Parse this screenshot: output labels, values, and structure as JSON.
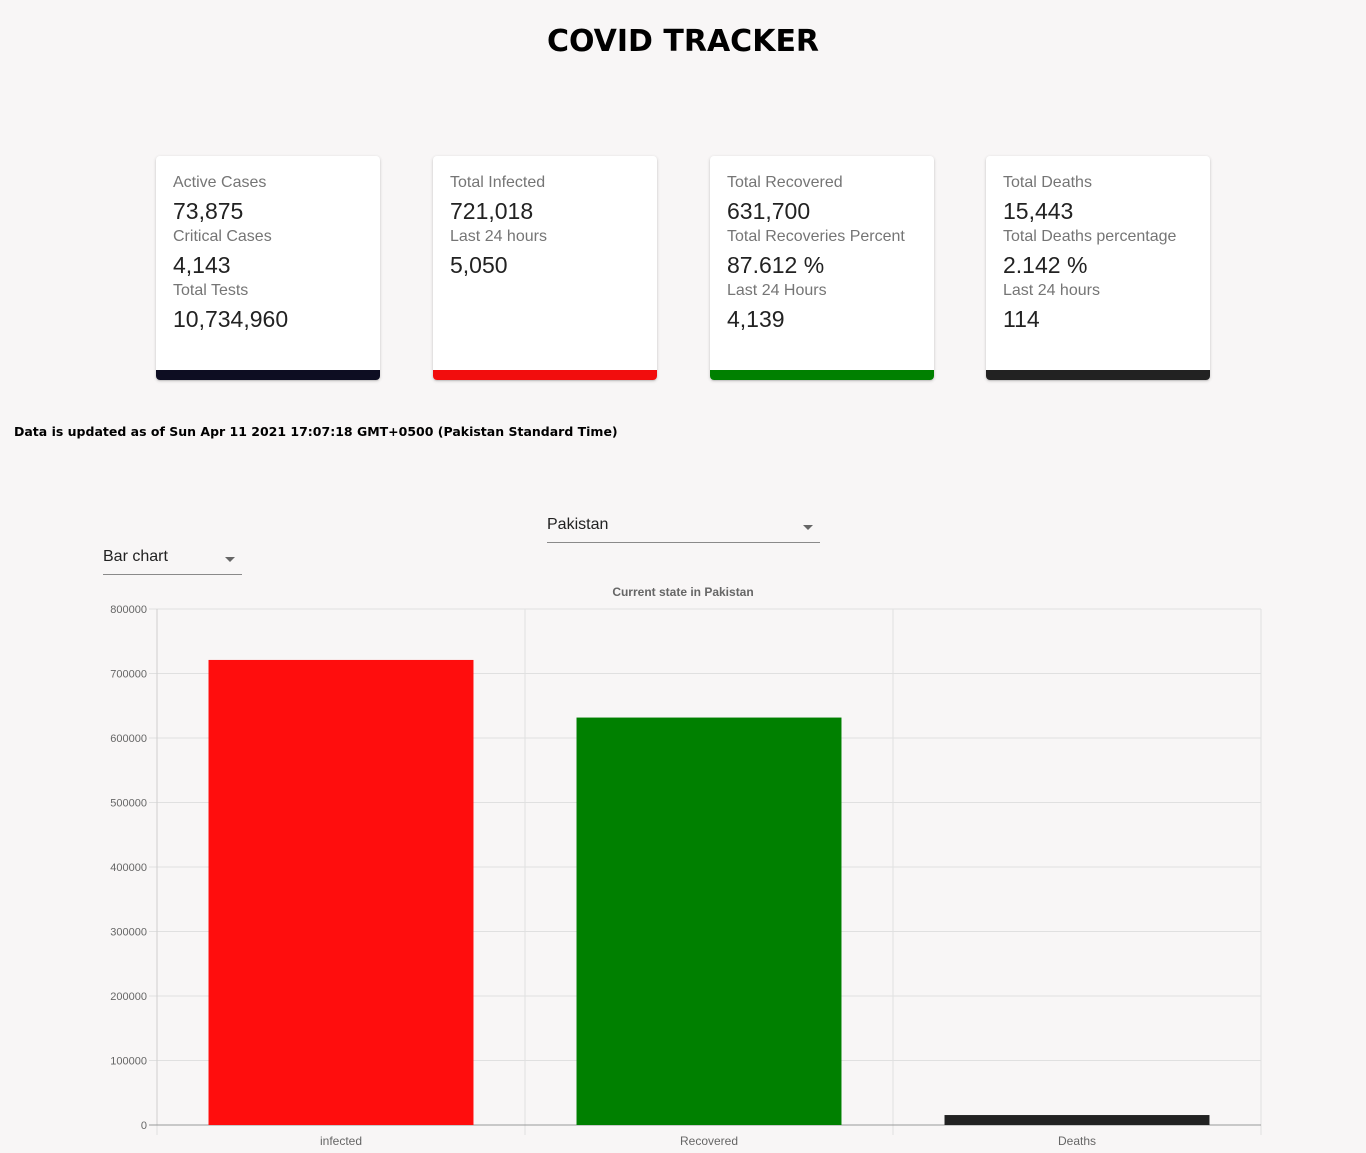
{
  "header": {
    "title": "COVID TRACKER"
  },
  "cards": [
    {
      "accent": "#0d0d22",
      "rows": [
        {
          "label": "Active Cases",
          "value": "73,875"
        },
        {
          "label": "Critical Cases",
          "value": "4,143"
        },
        {
          "label": "Total Tests",
          "value": "10,734,960"
        }
      ]
    },
    {
      "accent": "#f20d0d",
      "rows": [
        {
          "label": "Total Infected",
          "value": "721,018"
        },
        {
          "label": "Last 24 hours",
          "value": "5,050"
        }
      ]
    },
    {
      "accent": "#008000",
      "rows": [
        {
          "label": "Total Recovered",
          "value": "631,700"
        },
        {
          "label": "Total Recoveries Percent",
          "value": "87.612 %"
        },
        {
          "label": "Last 24 Hours",
          "value": "4,139"
        }
      ]
    },
    {
      "accent": "#222222",
      "rows": [
        {
          "label": "Total Deaths",
          "value": "15,443"
        },
        {
          "label": "Total Deaths percentage",
          "value": "2.142 %"
        },
        {
          "label": "Last 24 hours",
          "value": "114"
        }
      ]
    }
  ],
  "updated_text": "Data is updated as of Sun Apr 11 2021 17:07:18 GMT+0500 (Pakistan Standard Time)",
  "controls": {
    "country_select": {
      "value": "Pakistan"
    },
    "chart_type_select": {
      "value": "Bar chart"
    }
  },
  "chart_data": {
    "type": "bar",
    "title": "Current state in Pakistan",
    "categories": [
      "infected",
      "Recovered",
      "Deaths"
    ],
    "values": [
      721018,
      631700,
      15443
    ],
    "colors": [
      "#ff0d0d",
      "#008000",
      "#222222"
    ],
    "ylim": [
      0,
      800000
    ],
    "yticks": [
      "0",
      "100000",
      "200000",
      "300000",
      "400000",
      "500000",
      "600000",
      "700000",
      "800000"
    ],
    "xlabel": "",
    "ylabel": "",
    "grid": true,
    "legend": false
  }
}
